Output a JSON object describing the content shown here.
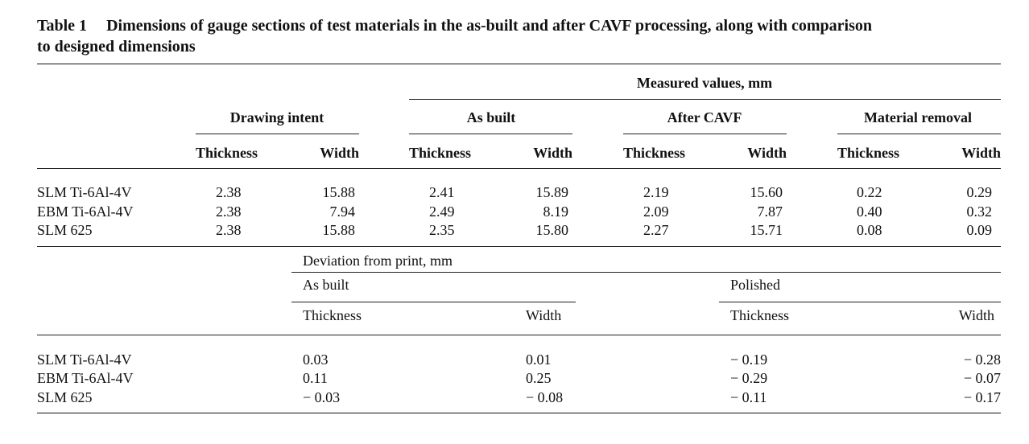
{
  "caption": {
    "label": "Table 1",
    "text_line1": "Dimensions of gauge sections of test materials in the as-built and after CAVF processing, along with comparison",
    "text_line2": "to designed dimensions"
  },
  "table1": {
    "group_header": "Measured values, mm",
    "subgroups": [
      "Drawing intent",
      "As built",
      "After CAVF",
      "Material removal"
    ],
    "col_labels": [
      "Thickness",
      "Width",
      "Thickness",
      "Width",
      "Thickness",
      "Width",
      "Thickness",
      "Width"
    ],
    "rows": [
      {
        "material": "SLM Ti-6Al-4V",
        "values": [
          "2.38",
          "15.88",
          "2.41",
          "15.89",
          "2.19",
          "15.60",
          "0.22",
          "0.29"
        ]
      },
      {
        "material": "EBM Ti-6Al-4V",
        "values": [
          "2.38",
          "7.94",
          "2.49",
          "8.19",
          "2.09",
          "7.87",
          "0.40",
          "0.32"
        ]
      },
      {
        "material": "SLM 625",
        "values": [
          "2.38",
          "15.88",
          "2.35",
          "15.80",
          "2.27",
          "15.71",
          "0.08",
          "0.09"
        ]
      }
    ]
  },
  "table2": {
    "group_header": "Deviation from print, mm",
    "subgroups": [
      "As built",
      "Polished"
    ],
    "col_labels": [
      "Thickness",
      "Width",
      "Thickness",
      "Width"
    ],
    "rows": [
      {
        "material": "SLM Ti-6Al-4V",
        "values": [
          "0.03",
          "0.01",
          "− 0.19",
          "− 0.28"
        ]
      },
      {
        "material": "EBM Ti-6Al-4V",
        "values": [
          "0.11",
          "0.25",
          "− 0.29",
          "− 0.07"
        ]
      },
      {
        "material": "SLM 625",
        "values": [
          "− 0.03",
          "− 0.08",
          "− 0.11",
          "− 0.17"
        ]
      }
    ]
  }
}
